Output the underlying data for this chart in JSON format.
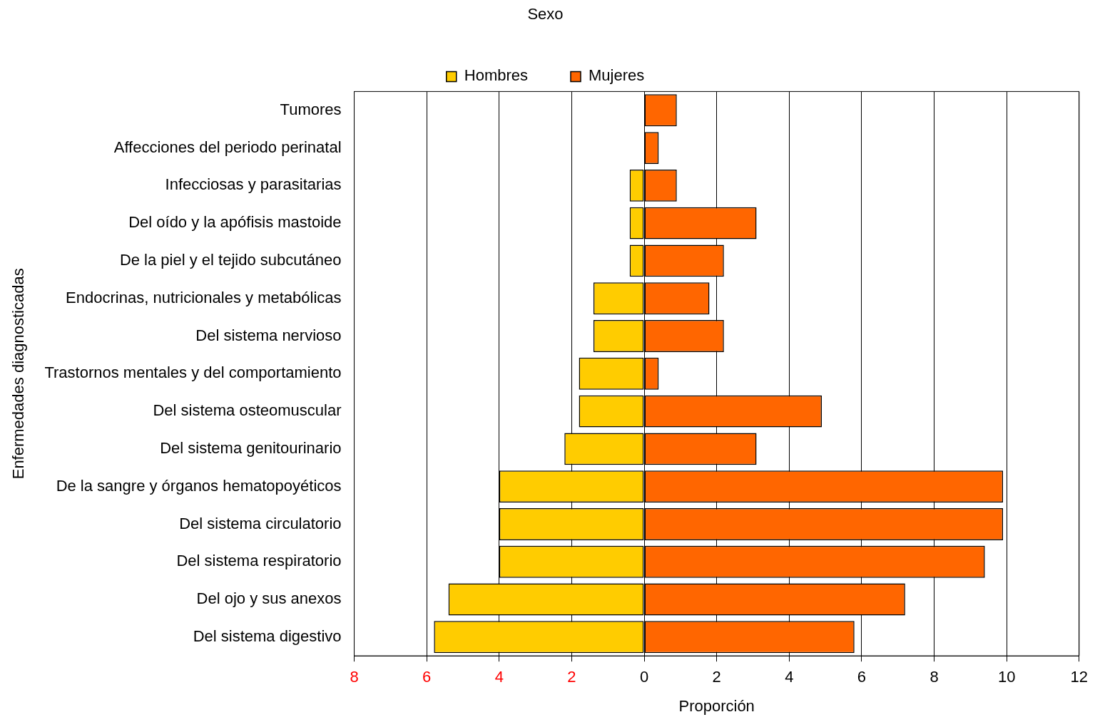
{
  "chart_data": {
    "type": "bar",
    "orientation": "horizontal",
    "stacked": true,
    "legend_title": "Sexo",
    "xlabel": "Proporción",
    "ylabel": "Enfermedades diagnosticadas",
    "categories": [
      "Tumores",
      "Affecciones del periodo perinatal",
      "Infecciosas y parasitarias",
      "Del oído y la apófisis mastoide",
      "De la piel y el tejido subcutáneo",
      "Endocrinas, nutricionales y metabólicas",
      "Del sistema nervioso",
      "Trastornos mentales y del comportamiento",
      "Del sistema osteomuscular",
      "Del sistema genitourinario",
      "De la sangre y órganos hematopoyéticos",
      "Del sistema circulatorio",
      "Del sistema respiratorio",
      "Del ojo y sus anexos",
      "Del sistema digestivo"
    ],
    "series": [
      {
        "name": "Hombres",
        "color": "#ffcc00",
        "values": [
          0,
          0,
          -0.4,
          -0.4,
          -0.4,
          -1.4,
          -1.4,
          -1.8,
          -1.8,
          -2.2,
          -4.0,
          -4.0,
          -4.0,
          -5.4,
          -5.8
        ]
      },
      {
        "name": "Mujeres",
        "color": "#ff6600",
        "values": [
          0.9,
          0.4,
          0.9,
          3.1,
          2.2,
          1.8,
          2.2,
          0.4,
          4.9,
          3.1,
          9.9,
          9.9,
          9.4,
          7.2,
          5.8
        ]
      }
    ],
    "xlim": [
      -8,
      12
    ],
    "xticks": [
      {
        "value": -8,
        "label": "8"
      },
      {
        "value": -6,
        "label": "6"
      },
      {
        "value": -4,
        "label": "4"
      },
      {
        "value": -2,
        "label": "2"
      },
      0,
      2,
      4,
      6,
      8,
      10,
      12
    ],
    "grid": "x",
    "legend": "top"
  }
}
